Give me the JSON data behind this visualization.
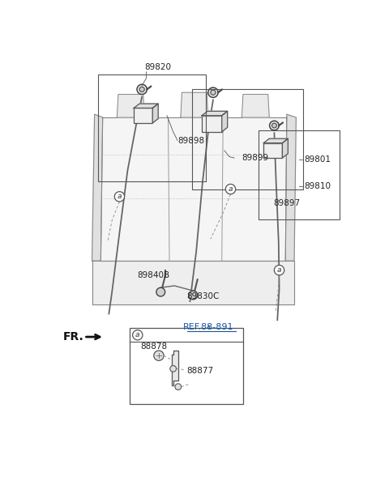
{
  "bg_color": "#ffffff",
  "line_color": "#555555",
  "dark_color": "#333333",
  "label_color": "#222222",
  "ref_color": "#1155aa",
  "part_labels": [
    "89820",
    "89898",
    "89801",
    "89899",
    "89897",
    "89810",
    "89840B",
    "89830C",
    "88878",
    "88877"
  ],
  "ref_label": "REF.88-891",
  "fr_label": "FR."
}
